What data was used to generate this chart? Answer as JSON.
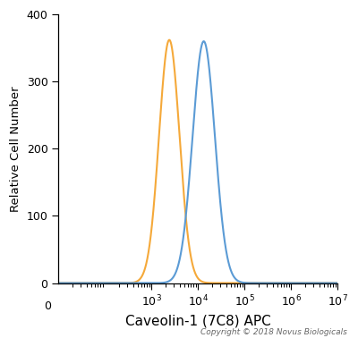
{
  "xlabel": "Caveolin-1 (7C8) APC",
  "ylabel": "Relative Cell Number",
  "copyright": "Copyright © 2018 Novus Biologicals",
  "ylim": [
    0,
    400
  ],
  "yticks": [
    0,
    100,
    200,
    300,
    400
  ],
  "orange_color": "#F5A93A",
  "blue_color": "#5B9BD5",
  "orange_peak_log": 3.38,
  "orange_peak_y": 362,
  "orange_sigma": 0.22,
  "blue_peak_log": 4.12,
  "blue_peak_y": 360,
  "blue_sigma": 0.24,
  "background_color": "#ffffff",
  "plot_bg_color": "#ffffff",
  "linewidth": 1.5,
  "x_log_min": 1,
  "x_log_max": 7
}
